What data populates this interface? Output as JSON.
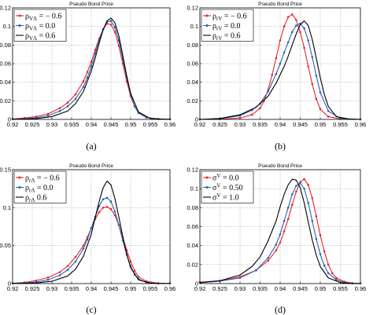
{
  "colors": {
    "red": "#e8262a",
    "blue": "#2a62b4",
    "black": "#000000",
    "grid": "#999999"
  },
  "chart_data": [
    {
      "type": "line",
      "title": "Pseudo Bond Price",
      "panel_label": "(a)",
      "xlim": [
        0.92,
        0.96
      ],
      "ylim": [
        0,
        0.12
      ],
      "xticks": [
        "0.92",
        "0.925",
        "0.93",
        "0.935",
        "0.94",
        "0.945",
        "0.95",
        "0.955",
        "0.96"
      ],
      "yticks": [
        "0",
        "0.02",
        "0.04",
        "0.06",
        "0.08",
        "0.1",
        "0.12"
      ],
      "grid": true,
      "legend_position": "top-left",
      "legend": [
        {
          "label": "ρ",
          "sub": "VΛ",
          "suffix": " = − 0.6"
        },
        {
          "label": "ρ",
          "sub": "VΛ",
          "suffix": " = 0.0"
        },
        {
          "label": "ρ",
          "sub": "VΛ",
          "suffix": " = 0.6"
        }
      ],
      "series": [
        {
          "color": "red",
          "marker": "dot",
          "x": [
            0.92,
            0.923,
            0.926,
            0.929,
            0.932,
            0.934,
            0.936,
            0.938,
            0.939,
            0.94,
            0.941,
            0.942,
            0.943,
            0.944,
            0.945,
            0.946,
            0.947,
            0.948,
            0.949,
            0.95,
            0.951,
            0.952,
            0.954,
            0.957,
            0.96
          ],
          "y": [
            0.0005,
            0.0015,
            0.003,
            0.006,
            0.012,
            0.018,
            0.027,
            0.041,
            0.051,
            0.062,
            0.075,
            0.087,
            0.097,
            0.103,
            0.102,
            0.094,
            0.079,
            0.06,
            0.041,
            0.025,
            0.014,
            0.007,
            0.002,
            0.0005,
            0.0002
          ]
        },
        {
          "color": "blue",
          "marker": "dot",
          "x": [
            0.92,
            0.923,
            0.926,
            0.929,
            0.932,
            0.934,
            0.936,
            0.938,
            0.939,
            0.94,
            0.941,
            0.942,
            0.943,
            0.944,
            0.945,
            0.946,
            0.947,
            0.948,
            0.949,
            0.95,
            0.951,
            0.952,
            0.954,
            0.957,
            0.96
          ],
          "y": [
            0.0002,
            0.0007,
            0.0018,
            0.004,
            0.009,
            0.014,
            0.022,
            0.035,
            0.045,
            0.057,
            0.071,
            0.085,
            0.097,
            0.105,
            0.106,
            0.099,
            0.085,
            0.065,
            0.045,
            0.027,
            0.014,
            0.007,
            0.002,
            0.0004,
            0.0001
          ]
        },
        {
          "color": "black",
          "marker": "none",
          "x": [
            0.92,
            0.926,
            0.93,
            0.934,
            0.936,
            0.938,
            0.94,
            0.941,
            0.942,
            0.943,
            0.944,
            0.945,
            0.946,
            0.947,
            0.948,
            0.949,
            0.95,
            0.952,
            0.955,
            0.96
          ],
          "y": [
            0,
            0.0008,
            0.003,
            0.009,
            0.017,
            0.03,
            0.052,
            0.066,
            0.082,
            0.096,
            0.106,
            0.109,
            0.104,
            0.09,
            0.069,
            0.047,
            0.028,
            0.008,
            0.001,
            0
          ]
        }
      ]
    },
    {
      "type": "line",
      "title": "Pseudo Bond Price",
      "panel_label": "(b)",
      "xlim": [
        0.92,
        0.96
      ],
      "ylim": [
        0,
        0.12
      ],
      "xticks": [
        "0.92",
        "0.925",
        "0.93",
        "0.935",
        "0.94",
        "0.945",
        "0.95",
        "0.955",
        "0.96"
      ],
      "yticks": [
        "0",
        "0.02",
        "0.04",
        "0.06",
        "0.08",
        "0.1",
        "0.12"
      ],
      "grid": true,
      "legend_position": "top-left",
      "legend": [
        {
          "label": "ρ",
          "sub": "rV",
          "suffix": " = − 0.6"
        },
        {
          "label": "ρ",
          "sub": "rV",
          "suffix": " = 0.0"
        },
        {
          "label": "ρ",
          "sub": "rV",
          "suffix": " = 0.6"
        }
      ],
      "series": [
        {
          "color": "red",
          "marker": "dot",
          "x": [
            0.92,
            0.925,
            0.93,
            0.933,
            0.935,
            0.936,
            0.937,
            0.938,
            0.939,
            0.94,
            0.941,
            0.942,
            0.943,
            0.944,
            0.945,
            0.946,
            0.947,
            0.948,
            0.949,
            0.95,
            0.952,
            0.955,
            0.96
          ],
          "y": [
            0,
            0.0002,
            0.0015,
            0.005,
            0.012,
            0.02,
            0.032,
            0.048,
            0.066,
            0.085,
            0.1,
            0.11,
            0.113,
            0.107,
            0.094,
            0.077,
            0.057,
            0.038,
            0.022,
            0.011,
            0.003,
            0.0005,
            0
          ]
        },
        {
          "color": "blue",
          "marker": "dot",
          "x": [
            0.92,
            0.925,
            0.93,
            0.933,
            0.935,
            0.937,
            0.939,
            0.94,
            0.941,
            0.942,
            0.943,
            0.944,
            0.945,
            0.946,
            0.947,
            0.948,
            0.949,
            0.95,
            0.952,
            0.955,
            0.96
          ],
          "y": [
            0,
            0.0008,
            0.004,
            0.01,
            0.017,
            0.03,
            0.049,
            0.06,
            0.072,
            0.083,
            0.094,
            0.101,
            0.103,
            0.098,
            0.085,
            0.067,
            0.047,
            0.029,
            0.009,
            0.001,
            0
          ]
        },
        {
          "color": "black",
          "marker": "none",
          "x": [
            0.92,
            0.925,
            0.93,
            0.934,
            0.937,
            0.939,
            0.941,
            0.942,
            0.943,
            0.944,
            0.945,
            0.946,
            0.947,
            0.948,
            0.949,
            0.95,
            0.951,
            0.952,
            0.954,
            0.957,
            0.96
          ],
          "y": [
            0,
            0.001,
            0.005,
            0.013,
            0.025,
            0.039,
            0.057,
            0.068,
            0.08,
            0.092,
            0.102,
            0.106,
            0.101,
            0.086,
            0.066,
            0.045,
            0.027,
            0.014,
            0.003,
            0.0005,
            0
          ]
        }
      ]
    },
    {
      "type": "line",
      "title": "Pseudo Bond Price",
      "panel_label": "(c)",
      "xlim": [
        0.92,
        0.96
      ],
      "ylim": [
        0,
        0.15
      ],
      "xticks": [
        "0.92",
        "0.925",
        "0.93",
        "0.935",
        "0.94",
        "0.945",
        "0.95",
        "0.955",
        "0.96"
      ],
      "yticks": [
        "0",
        "0.05",
        "0.1",
        "0.15"
      ],
      "grid": true,
      "legend_position": "top-left",
      "legend": [
        {
          "label": "ρ",
          "sub": "rΛ",
          "suffix": " = − 0.6"
        },
        {
          "label": "ρ",
          "sub": "rΛ",
          "suffix": " = 0.0"
        },
        {
          "label": "ρ",
          "sub": "rΛ",
          "suffix": " 0.6"
        }
      ],
      "series": [
        {
          "color": "red",
          "marker": "dot",
          "x": [
            0.92,
            0.923,
            0.926,
            0.929,
            0.932,
            0.934,
            0.936,
            0.938,
            0.939,
            0.94,
            0.941,
            0.942,
            0.943,
            0.944,
            0.945,
            0.946,
            0.947,
            0.948,
            0.949,
            0.95,
            0.951,
            0.952,
            0.954,
            0.957,
            0.96
          ],
          "y": [
            0.0005,
            0.0015,
            0.004,
            0.008,
            0.015,
            0.023,
            0.035,
            0.05,
            0.061,
            0.073,
            0.085,
            0.094,
            0.1,
            0.101,
            0.098,
            0.09,
            0.077,
            0.061,
            0.044,
            0.029,
            0.017,
            0.009,
            0.003,
            0.0005,
            0.0002
          ]
        },
        {
          "color": "blue",
          "marker": "dot",
          "x": [
            0.92,
            0.923,
            0.926,
            0.929,
            0.932,
            0.934,
            0.936,
            0.938,
            0.939,
            0.94,
            0.941,
            0.942,
            0.943,
            0.944,
            0.945,
            0.946,
            0.947,
            0.948,
            0.949,
            0.95,
            0.951,
            0.952,
            0.954,
            0.957,
            0.96
          ],
          "y": [
            0.0002,
            0.0008,
            0.002,
            0.005,
            0.011,
            0.018,
            0.029,
            0.046,
            0.058,
            0.073,
            0.088,
            0.102,
            0.111,
            0.113,
            0.108,
            0.095,
            0.077,
            0.057,
            0.038,
            0.023,
            0.012,
            0.006,
            0.0015,
            0.0002,
            0.0001
          ]
        },
        {
          "color": "black",
          "marker": "none",
          "x": [
            0.92,
            0.926,
            0.93,
            0.934,
            0.936,
            0.938,
            0.94,
            0.941,
            0.942,
            0.943,
            0.944,
            0.945,
            0.946,
            0.947,
            0.948,
            0.949,
            0.95,
            0.952,
            0.955,
            0.96
          ],
          "y": [
            0,
            0.0008,
            0.003,
            0.01,
            0.019,
            0.036,
            0.065,
            0.087,
            0.108,
            0.126,
            0.135,
            0.13,
            0.112,
            0.088,
            0.062,
            0.039,
            0.021,
            0.005,
            0.0005,
            0
          ]
        }
      ]
    },
    {
      "type": "line",
      "title": "Pseudo Bond Price",
      "panel_label": "(d)",
      "xlim": [
        0.92,
        0.96
      ],
      "ylim": [
        0,
        0.12
      ],
      "xticks": [
        "0.92",
        "0.925",
        "0.93",
        "0.935",
        "0.94",
        "0.945",
        "0.95",
        "0.955",
        "0.96"
      ],
      "yticks": [
        "0",
        "0.02",
        "0.04",
        "0.06",
        "0.08",
        "0.1",
        "0.12"
      ],
      "grid": true,
      "legend_position": "top-left",
      "legend": [
        {
          "label": "σ",
          "sup": "V",
          "suffix": " = 0.0"
        },
        {
          "label": "σ",
          "sup": "V",
          "suffix": " = 0.50"
        },
        {
          "label": "σ",
          "sup": "V",
          "suffix": " = 1.0"
        }
      ],
      "series": [
        {
          "color": "red",
          "marker": "dot",
          "x": [
            0.92,
            0.925,
            0.93,
            0.934,
            0.937,
            0.939,
            0.94,
            0.941,
            0.942,
            0.943,
            0.944,
            0.945,
            0.946,
            0.947,
            0.948,
            0.949,
            0.95,
            0.951,
            0.952,
            0.953,
            0.954,
            0.956,
            0.958,
            0.96
          ],
          "y": [
            0.0015,
            0.003,
            0.007,
            0.014,
            0.024,
            0.035,
            0.043,
            0.055,
            0.068,
            0.083,
            0.097,
            0.107,
            0.11,
            0.104,
            0.09,
            0.071,
            0.051,
            0.034,
            0.02,
            0.011,
            0.006,
            0.002,
            0.0005,
            0.0002
          ]
        },
        {
          "color": "blue",
          "marker": "dot",
          "x": [
            0.92,
            0.925,
            0.93,
            0.934,
            0.937,
            0.939,
            0.94,
            0.941,
            0.942,
            0.943,
            0.944,
            0.945,
            0.946,
            0.947,
            0.948,
            0.949,
            0.95,
            0.951,
            0.952,
            0.954,
            0.956,
            0.958,
            0.96
          ],
          "y": [
            0.001,
            0.0025,
            0.006,
            0.014,
            0.027,
            0.041,
            0.052,
            0.066,
            0.08,
            0.094,
            0.103,
            0.106,
            0.1,
            0.085,
            0.066,
            0.047,
            0.031,
            0.019,
            0.011,
            0.004,
            0.0012,
            0.0003,
            0.0001
          ]
        },
        {
          "color": "black",
          "marker": "none",
          "x": [
            0.92,
            0.925,
            0.93,
            0.933,
            0.935,
            0.937,
            0.939,
            0.94,
            0.941,
            0.942,
            0.943,
            0.944,
            0.945,
            0.946,
            0.947,
            0.948,
            0.949,
            0.95,
            0.952,
            0.955,
            0.958,
            0.96
          ],
          "y": [
            0.001,
            0.003,
            0.009,
            0.018,
            0.028,
            0.045,
            0.066,
            0.081,
            0.094,
            0.104,
            0.11,
            0.109,
            0.101,
            0.085,
            0.065,
            0.046,
            0.03,
            0.018,
            0.006,
            0.001,
            0.0002,
            0
          ]
        }
      ]
    }
  ]
}
